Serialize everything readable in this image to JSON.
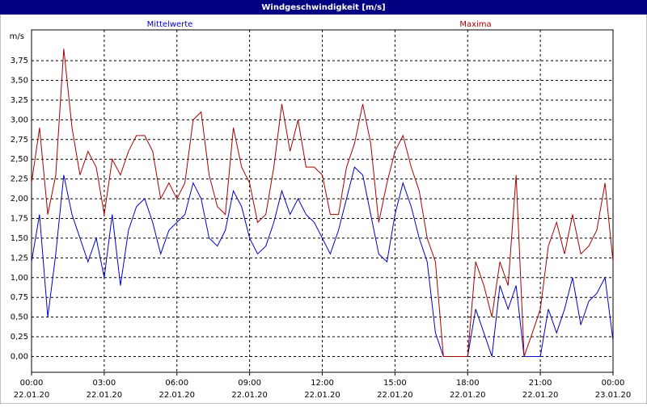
{
  "chart_data": {
    "type": "line",
    "title": "Windgeschwindigkeit [m/s]",
    "y_unit": "m/s",
    "x": [
      0,
      0.33,
      0.67,
      1,
      1.33,
      1.67,
      2,
      2.33,
      2.67,
      3,
      3.33,
      3.67,
      4,
      4.33,
      4.67,
      5,
      5.33,
      5.67,
      6,
      6.33,
      6.67,
      7,
      7.33,
      7.67,
      8,
      8.33,
      8.67,
      9,
      9.33,
      9.67,
      10,
      10.33,
      10.67,
      11,
      11.33,
      11.67,
      12,
      12.33,
      12.67,
      13,
      13.33,
      13.67,
      14,
      14.33,
      14.67,
      15,
      15.33,
      15.67,
      16,
      16.33,
      16.67,
      17,
      17.33,
      17.67,
      18,
      18.33,
      18.67,
      19,
      19.33,
      19.67,
      20,
      20.33,
      20.67,
      21,
      21.33,
      21.67,
      22,
      22.33,
      22.67,
      23,
      23.33,
      23.67,
      24
    ],
    "series": [
      {
        "name": "Mittelwerte",
        "color": "#0000cc",
        "values": [
          1.2,
          1.8,
          0.5,
          1.3,
          2.3,
          1.8,
          1.5,
          1.2,
          1.5,
          1.0,
          1.8,
          0.9,
          1.6,
          1.9,
          2.0,
          1.7,
          1.3,
          1.6,
          1.7,
          1.8,
          2.2,
          2.0,
          1.5,
          1.4,
          1.6,
          2.1,
          1.9,
          1.5,
          1.3,
          1.4,
          1.7,
          2.1,
          1.8,
          2.0,
          1.8,
          1.7,
          1.5,
          1.3,
          1.6,
          2.0,
          2.4,
          2.3,
          1.8,
          1.3,
          1.2,
          1.8,
          2.2,
          1.9,
          1.5,
          1.2,
          0.3,
          0,
          0,
          0,
          0,
          0.6,
          0.3,
          0,
          0.9,
          0.6,
          0.9,
          0,
          0,
          0,
          0.6,
          0.3,
          0.6,
          1.0,
          0.4,
          0.7,
          0.8,
          1.0,
          0.2
        ]
      },
      {
        "name": "Maxima",
        "color": "#aa0000",
        "values": [
          2.2,
          2.9,
          1.8,
          2.3,
          3.9,
          2.9,
          2.3,
          2.6,
          2.4,
          1.8,
          2.5,
          2.3,
          2.6,
          2.8,
          2.8,
          2.6,
          2.0,
          2.2,
          2.0,
          2.2,
          3.0,
          3.1,
          2.3,
          1.9,
          1.8,
          2.9,
          2.4,
          2.2,
          1.7,
          1.8,
          2.4,
          3.2,
          2.6,
          3.0,
          2.4,
          2.4,
          2.3,
          1.8,
          1.8,
          2.4,
          2.7,
          3.2,
          2.7,
          1.7,
          2.2,
          2.6,
          2.8,
          2.4,
          2.1,
          1.5,
          1.2,
          0,
          0,
          0,
          0,
          1.2,
          0.9,
          0.5,
          1.2,
          0.9,
          2.3,
          0,
          0.3,
          0.6,
          1.4,
          1.7,
          1.3,
          1.8,
          1.3,
          1.4,
          1.6,
          2.2,
          1.2
        ]
      }
    ],
    "xlim": [
      0,
      24
    ],
    "xticks": [
      {
        "value": 0,
        "label": "00:00"
      },
      {
        "value": 3,
        "label": "03:00"
      },
      {
        "value": 6,
        "label": "06:00"
      },
      {
        "value": 9,
        "label": "09:00"
      },
      {
        "value": 12,
        "label": "12:00"
      },
      {
        "value": 15,
        "label": "15:00"
      },
      {
        "value": 18,
        "label": "18:00"
      },
      {
        "value": 21,
        "label": "21:00"
      },
      {
        "value": 24,
        "label": "00:00"
      }
    ],
    "xtick_dates": [
      "22.01.20",
      "22.01.20",
      "22.01.20",
      "22.01.20",
      "22.01.20",
      "22.01.20",
      "22.01.20",
      "22.01.20",
      "23.01.20"
    ],
    "ylim": [
      -0.2,
      4.14
    ],
    "yticks": [
      {
        "value": 0,
        "label": "0,00"
      },
      {
        "value": 0.25,
        "label": "0,25"
      },
      {
        "value": 0.5,
        "label": "0,50"
      },
      {
        "value": 0.75,
        "label": "0,75"
      },
      {
        "value": 1,
        "label": "1,00"
      },
      {
        "value": 1.25,
        "label": "1,25"
      },
      {
        "value": 1.5,
        "label": "1,50"
      },
      {
        "value": 1.75,
        "label": "1,75"
      },
      {
        "value": 2,
        "label": "2,00"
      },
      {
        "value": 2.25,
        "label": "2,25"
      },
      {
        "value": 2.5,
        "label": "2,50"
      },
      {
        "value": 2.75,
        "label": "2,75"
      },
      {
        "value": 3,
        "label": "3,00"
      },
      {
        "value": 3.25,
        "label": "3,25"
      },
      {
        "value": 3.5,
        "label": "3,50"
      },
      {
        "value": 3.75,
        "label": "3,75"
      }
    ],
    "grid": true
  }
}
